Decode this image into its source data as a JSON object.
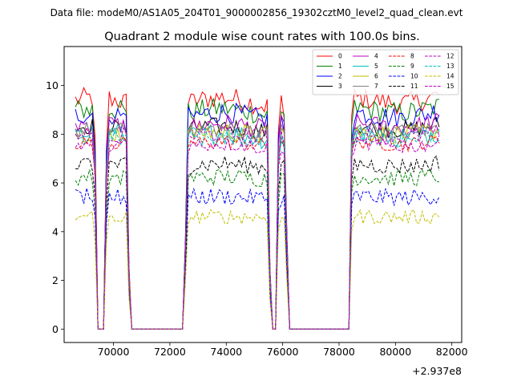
{
  "suptitle": "Data file: modeM0/AS1A05_204T01_9000002856_19302cztM0_level2_quad_clean.evt",
  "chart_data": {
    "type": "line",
    "title": "Quadrant 2 module wise count rates with 100.0s bins.",
    "xlabel": "",
    "ylabel": "",
    "x_offset_label": "+2.937e8",
    "xlim": [
      68250,
      82350
    ],
    "ylim": [
      -0.55,
      11.6
    ],
    "x_ticks": [
      70000,
      72000,
      74000,
      76000,
      78000,
      80000,
      82000
    ],
    "x_tick_labels": [
      "70000",
      "72000",
      "74000",
      "76000",
      "78000",
      "80000",
      "82000"
    ],
    "y_ticks": [
      0,
      2,
      4,
      6,
      8,
      10
    ],
    "y_tick_labels": [
      "0",
      "2",
      "4",
      "6",
      "8",
      "10"
    ],
    "legend_position": "top-right",
    "legend_columns": 4,
    "x_range": [
      68650,
      81550
    ],
    "x_step": 100,
    "gaps": [
      [
        69330,
        69430,
        69650,
        69780
      ],
      [
        70470,
        70580,
        72480,
        72650
      ],
      [
        75470,
        75580,
        75780,
        75860
      ],
      [
        76060,
        76220,
        78350,
        78460
      ]
    ],
    "series": [
      {
        "name": "0",
        "color": "#ff0000",
        "dash": "solid",
        "level": 9.3,
        "trend": 0.5,
        "noise": 0.45,
        "gap_level": 0.0
      },
      {
        "name": "1",
        "color": "#008000",
        "dash": "solid",
        "level": 8.9,
        "trend": 0.4,
        "noise": 0.45,
        "gap_level": 0.0
      },
      {
        "name": "2",
        "color": "#0000ff",
        "dash": "solid",
        "level": 8.7,
        "trend": 0.5,
        "noise": 0.45,
        "gap_level": 0.0
      },
      {
        "name": "3",
        "color": "#000000",
        "dash": "solid",
        "level": 8.2,
        "trend": 0.4,
        "noise": 0.35,
        "gap_level": 0.0
      },
      {
        "name": "4",
        "color": "#bf00bf",
        "dash": "solid",
        "level": 8.3,
        "trend": 0.4,
        "noise": 0.4,
        "gap_level": 0.0
      },
      {
        "name": "5",
        "color": "#00bfbf",
        "dash": "solid",
        "level": 7.9,
        "trend": 0.4,
        "noise": 0.45,
        "gap_level": 0.0
      },
      {
        "name": "6",
        "color": "#bfbf00",
        "dash": "solid",
        "level": 8.0,
        "trend": 0.3,
        "noise": 0.4,
        "gap_level": 0.0
      },
      {
        "name": "7",
        "color": "#808080",
        "dash": "solid",
        "level": 8.1,
        "trend": 0.3,
        "noise": 0.35,
        "gap_level": 0.0
      },
      {
        "name": "8",
        "color": "#ff0000",
        "dash": "dashed",
        "level": 7.6,
        "trend": 0.3,
        "noise": 0.3,
        "gap_level": 0.0
      },
      {
        "name": "9",
        "color": "#008000",
        "dash": "dashed",
        "level": 6.2,
        "trend": 0.2,
        "noise": 0.35,
        "gap_level": 0.0
      },
      {
        "name": "10",
        "color": "#0000ff",
        "dash": "dashed",
        "level": 5.4,
        "trend": 0.2,
        "noise": 0.35,
        "gap_level": 0.0
      },
      {
        "name": "11",
        "color": "#000000",
        "dash": "dashed",
        "level": 6.7,
        "trend": 0.3,
        "noise": 0.35,
        "gap_level": 0.0
      },
      {
        "name": "12",
        "color": "#bf00bf",
        "dash": "dashed",
        "level": 7.9,
        "trend": 0.3,
        "noise": 0.35,
        "gap_level": 0.0
      },
      {
        "name": "13",
        "color": "#00bfbf",
        "dash": "dashed",
        "level": 7.8,
        "trend": 0.3,
        "noise": 0.35,
        "gap_level": 0.0
      },
      {
        "name": "14",
        "color": "#bfbf00",
        "dash": "dashed",
        "level": 4.6,
        "trend": 0.1,
        "noise": 0.3,
        "gap_level": 0.0
      },
      {
        "name": "15",
        "color": "#bf00bf",
        "dash": "dashed",
        "level": 7.5,
        "trend": 0.3,
        "noise": 0.3,
        "gap_level": 0.0
      }
    ]
  }
}
